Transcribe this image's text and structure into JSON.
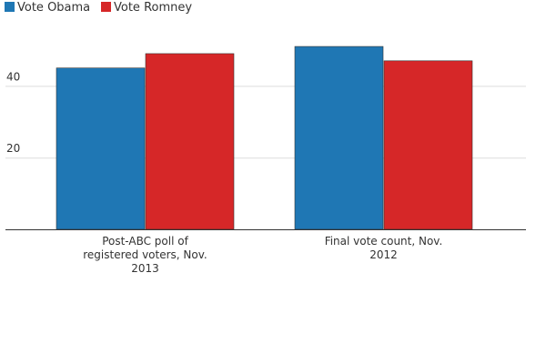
{
  "chart_data": {
    "type": "bar",
    "title": "",
    "xlabel": "",
    "ylabel": "",
    "categories": [
      [
        "Post-ABC poll of",
        "registered voters, Nov.",
        "2013"
      ],
      [
        "Final vote count, Nov.",
        "2012"
      ]
    ],
    "series": [
      {
        "name": "Vote Obama",
        "color": "#1f77b4",
        "values": [
          45,
          51
        ]
      },
      {
        "name": "Vote Romney",
        "color": "#d62728",
        "values": [
          49,
          47
        ]
      }
    ],
    "ylim": [
      0,
      55
    ],
    "yticks": [
      20,
      40
    ],
    "grid": true,
    "legend": "top-left"
  }
}
